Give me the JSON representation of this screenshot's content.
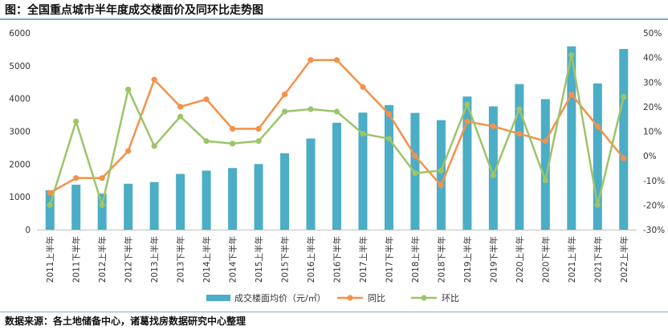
{
  "header": {
    "title": "图：全国重点城市半年度成交楼面价及同环比走势图"
  },
  "footer": {
    "source": "数据来源：各土地储备中心，诸葛找房数据研究中心整理"
  },
  "colors": {
    "bar": "#4badc6",
    "yoy": "#f5914a",
    "mom": "#9cc46a",
    "rule": "#7aa9d6"
  },
  "chart_data": {
    "type": "bar",
    "categories": [
      "2011上半年",
      "2011下半年",
      "2012上半年",
      "2012下半年",
      "2013上半年",
      "2013下半年",
      "2014上半年",
      "2014下半年",
      "2015上半年",
      "2015下半年",
      "2016上半年",
      "2016下半年",
      "2017上半年",
      "2017下半年",
      "2018上半年",
      "2018下半年",
      "2019上半年",
      "2019下半年",
      "2020上半年",
      "2020下半年",
      "2021上半年",
      "2021下半年",
      "2022上半年"
    ],
    "series": [
      {
        "name": "成交楼面均价（元/㎡）",
        "type": "bar",
        "axis": "left",
        "values": [
          1200,
          1370,
          1100,
          1400,
          1450,
          1700,
          1800,
          1880,
          2000,
          2330,
          2780,
          3260,
          3570,
          3800,
          3560,
          3340,
          4060,
          3760,
          4440,
          3980,
          5590,
          4460,
          5510
        ]
      },
      {
        "name": "同比",
        "type": "line",
        "axis": "right",
        "values": [
          -15,
          -9,
          -9,
          2,
          31,
          20,
          23,
          11,
          11,
          25,
          39,
          39,
          28,
          17,
          0,
          -12,
          14,
          12,
          9,
          6,
          25,
          12,
          -1
        ]
      },
      {
        "name": "环比",
        "type": "line",
        "axis": "right",
        "values": [
          -20,
          14,
          -20,
          27,
          4,
          16,
          6,
          5,
          6,
          18,
          19,
          18,
          9,
          7,
          -7,
          -6,
          21,
          -8,
          19,
          -10,
          41,
          -20,
          24
        ]
      }
    ],
    "y_left": {
      "min": 0,
      "max": 6000,
      "step": 1000,
      "ticks": [
        "0",
        "1000",
        "2000",
        "3000",
        "4000",
        "5000",
        "6000"
      ]
    },
    "y_right": {
      "min": -30,
      "max": 50,
      "step": 10,
      "ticks": [
        "-30%",
        "-20%",
        "-10%",
        "0%",
        "10%",
        "20%",
        "30%",
        "40%",
        "50%"
      ]
    },
    "grid": false,
    "legend_position": "bottom"
  }
}
